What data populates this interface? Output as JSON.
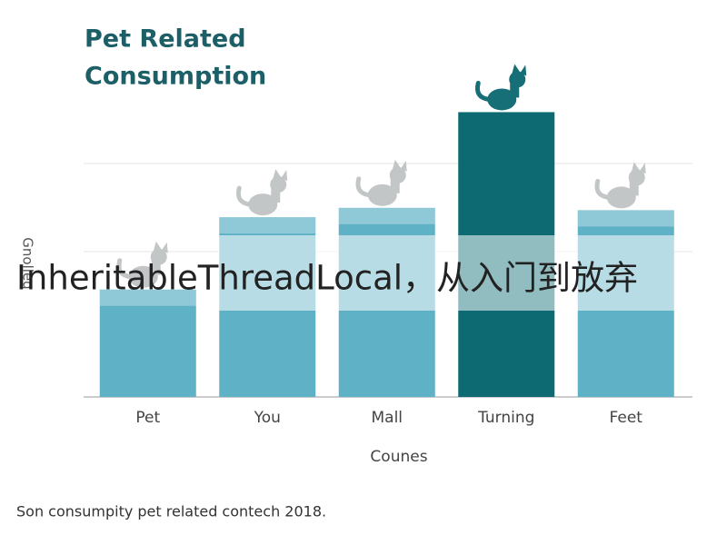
{
  "chart_data": {
    "type": "bar",
    "title": [
      "Pet Related",
      "Consumption"
    ],
    "categories": [
      "Pet",
      "You",
      "Mall",
      "Turning",
      "Feet"
    ],
    "values": [
      46,
      77,
      81,
      122,
      80
    ],
    "colors": [
      "#5fb1c5",
      "#5fb1c5",
      "#5fb1c5",
      "#0d6a73",
      "#5fb1c5"
    ],
    "ylim": [
      0,
      125
    ],
    "x_label": "Counes",
    "y_label": "Gnolleg",
    "caption": "Son consumpity pet related contech 2018."
  },
  "overlay": {
    "text": "InheritableThreadLocal，从入门到放弃"
  }
}
